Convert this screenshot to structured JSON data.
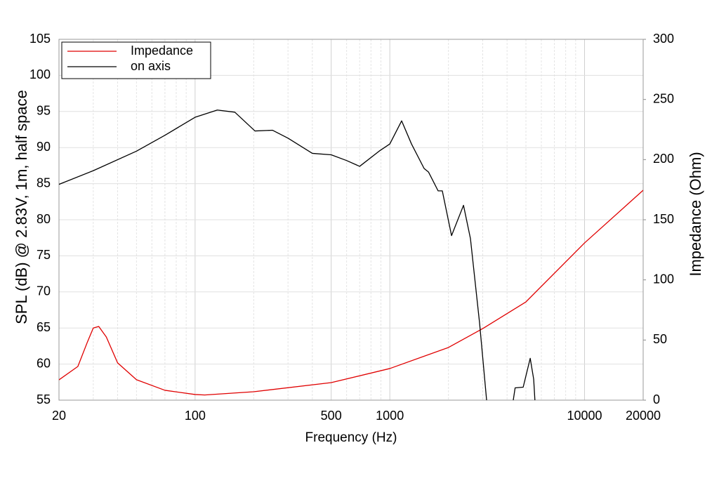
{
  "chart_data": {
    "type": "line",
    "xlabel": "Frequency (Hz)",
    "ylabel": "SPL (dB) @ 2.83V, 1m, half space",
    "y2label": "Impedance (Ohm)",
    "xscale": "log",
    "xlim": [
      20,
      20000
    ],
    "xticks": [
      20,
      100,
      500,
      1000,
      10000,
      20000
    ],
    "xgrid": [
      30,
      40,
      50,
      60,
      70,
      80,
      90,
      200,
      300,
      400,
      600,
      700,
      800,
      900,
      2000,
      3000,
      4000,
      5000,
      6000,
      7000,
      8000,
      9000
    ],
    "ylim": [
      55,
      105
    ],
    "yticks": [
      55,
      60,
      65,
      70,
      75,
      80,
      85,
      90,
      95,
      100,
      105
    ],
    "y2lim": [
      0,
      300
    ],
    "y2ticks": [
      0,
      50,
      100,
      150,
      200,
      250,
      300
    ],
    "grid": true,
    "legend": "top-left",
    "series": [
      {
        "name": "Impedance",
        "color": "#e00000",
        "axis": "y2",
        "x": [
          20,
          25,
          28,
          30,
          32,
          35,
          40,
          50,
          70,
          100,
          112,
          200,
          500,
          1000,
          2000,
          3000,
          5000,
          10000,
          20000
        ],
        "values": [
          16.9,
          28,
          48.4,
          60,
          61.3,
          52.5,
          31,
          17,
          8.2,
          4.7,
          4.3,
          7,
          14.6,
          26.3,
          43.8,
          59.5,
          81.7,
          130.7,
          174.5
        ]
      },
      {
        "name": "on axis",
        "color": "#000000",
        "x": [
          20,
          30,
          50,
          70,
          100,
          130,
          160,
          203,
          250,
          300,
          400,
          500,
          600,
          700,
          881,
          1000,
          1150,
          1292,
          1500,
          1581,
          1770,
          1860,
          2075,
          2390,
          2594,
          2890,
          3141,
          3800,
          4305,
          4400,
          4840,
          5260,
          5480,
          5560
        ],
        "values": [
          84.9,
          86.8,
          89.5,
          91.7,
          94.2,
          95.2,
          94.9,
          92.3,
          92.4,
          91.3,
          89.2,
          89.0,
          88.2,
          87.4,
          89.5,
          90.5,
          93.7,
          90.5,
          87.1,
          86.6,
          84.0,
          84.0,
          77.8,
          82.0,
          77.4,
          65.7,
          55,
          null,
          55,
          56.7,
          56.8,
          60.8,
          57.9,
          55
        ]
      }
    ]
  }
}
